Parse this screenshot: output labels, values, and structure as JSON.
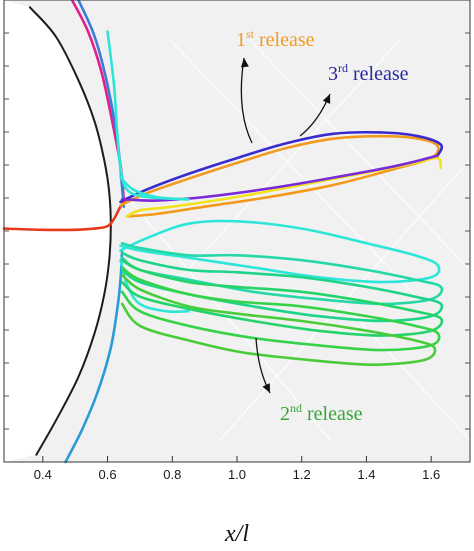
{
  "chart_data": {
    "type": "line",
    "xlabel": "x/l",
    "xlim": [
      0.28,
      1.72
    ],
    "x_ticks": [
      0.4,
      0.6,
      0.8,
      1.0,
      1.2,
      1.4,
      1.6
    ],
    "x_tick_labels": [
      "0.4",
      "0.6",
      "0.8",
      "1.0",
      "1.2",
      "1.4",
      "1.6"
    ],
    "ylim": [
      -0.95,
      0.95
    ],
    "grid": false,
    "background_color": "#f1f1f1",
    "annotations": [
      {
        "id": "first",
        "base": "1",
        "sup": "st",
        "rest": " release",
        "color": "#f39a1e"
      },
      {
        "id": "third",
        "base": "3",
        "sup": "rd",
        "rest": " release",
        "color": "#2a2a9e"
      },
      {
        "id": "second",
        "base": "2",
        "sup": "nd",
        "rest": " release",
        "color": "#3aa63a"
      }
    ],
    "series": [
      {
        "color": "#1c1c1c",
        "points": [
          [
            0.36,
            0.92
          ],
          [
            0.44,
            0.8
          ],
          [
            0.51,
            0.62
          ],
          [
            0.56,
            0.45
          ],
          [
            0.59,
            0.29
          ],
          [
            0.605,
            0.16
          ],
          [
            0.61,
            0.02
          ],
          [
            0.605,
            -0.12
          ],
          [
            0.59,
            -0.26
          ],
          [
            0.56,
            -0.42
          ],
          [
            0.51,
            -0.6
          ],
          [
            0.44,
            -0.78
          ],
          [
            0.38,
            -0.92
          ]
        ]
      },
      {
        "color": "#e0208c",
        "points": [
          [
            0.49,
            0.95
          ],
          [
            0.54,
            0.82
          ],
          [
            0.58,
            0.66
          ],
          [
            0.61,
            0.48
          ],
          [
            0.64,
            0.27
          ],
          [
            0.65,
            0.13
          ]
        ]
      },
      {
        "color": "#3a7cd8",
        "points": [
          [
            0.51,
            0.95
          ],
          [
            0.56,
            0.8
          ],
          [
            0.6,
            0.6
          ],
          [
            0.63,
            0.38
          ],
          [
            0.645,
            0.18
          ],
          [
            0.65,
            0.1
          ]
        ]
      },
      {
        "color": "#2a9ad8",
        "points": [
          [
            0.645,
            -0.08
          ],
          [
            0.64,
            -0.2
          ],
          [
            0.63,
            -0.32
          ],
          [
            0.61,
            -0.48
          ],
          [
            0.57,
            -0.66
          ],
          [
            0.52,
            -0.82
          ],
          [
            0.47,
            -0.95
          ]
        ]
      },
      {
        "color": "#e8391c",
        "points": [
          [
            0.28,
            0.01
          ],
          [
            0.4,
            0.005
          ],
          [
            0.5,
            0.005
          ],
          [
            0.56,
            0.01
          ],
          [
            0.6,
            0.02
          ],
          [
            0.62,
            0.05
          ],
          [
            0.64,
            0.1
          ],
          [
            0.66,
            0.135
          ]
        ]
      },
      {
        "color": "#f39a1e",
        "points": [
          [
            0.64,
            0.105
          ],
          [
            0.72,
            0.155
          ],
          [
            0.85,
            0.215
          ],
          [
            1.0,
            0.28
          ],
          [
            1.15,
            0.34
          ],
          [
            1.3,
            0.38
          ],
          [
            1.45,
            0.39
          ],
          [
            1.56,
            0.38
          ],
          [
            1.62,
            0.35
          ],
          [
            1.6,
            0.3
          ],
          [
            1.5,
            0.26
          ],
          [
            1.3,
            0.19
          ],
          [
            1.1,
            0.14
          ],
          [
            0.9,
            0.1
          ],
          [
            0.75,
            0.07
          ],
          [
            0.66,
            0.06
          ]
        ]
      },
      {
        "color": "#f2e21e",
        "points": [
          [
            0.66,
            0.06
          ],
          [
            0.7,
            0.085
          ],
          [
            0.8,
            0.1
          ],
          [
            1.0,
            0.14
          ],
          [
            1.2,
            0.19
          ],
          [
            1.4,
            0.24
          ],
          [
            1.55,
            0.28
          ],
          [
            1.62,
            0.3
          ],
          [
            1.63,
            0.26
          ]
        ]
      },
      {
        "color": "#3a2ccc",
        "points": [
          [
            0.64,
            0.12
          ],
          [
            0.72,
            0.17
          ],
          [
            0.85,
            0.235
          ],
          [
            1.0,
            0.3
          ],
          [
            1.15,
            0.36
          ],
          [
            1.3,
            0.4
          ],
          [
            1.45,
            0.405
          ],
          [
            1.56,
            0.39
          ],
          [
            1.63,
            0.355
          ],
          [
            1.62,
            0.31
          ]
        ]
      },
      {
        "color": "#7a2ad8",
        "points": [
          [
            1.62,
            0.31
          ],
          [
            1.5,
            0.27
          ],
          [
            1.3,
            0.22
          ],
          [
            1.1,
            0.175
          ],
          [
            0.9,
            0.14
          ],
          [
            0.75,
            0.125
          ],
          [
            0.66,
            0.13
          ],
          [
            0.645,
            0.13
          ]
        ]
      },
      {
        "color": "#2ee6d8",
        "points": [
          [
            0.6,
            0.82
          ],
          [
            0.62,
            0.6
          ],
          [
            0.63,
            0.4
          ],
          [
            0.64,
            0.26
          ],
          [
            0.66,
            0.17
          ],
          [
            0.72,
            0.14
          ],
          [
            0.85,
            0.13
          ]
        ]
      },
      {
        "color": "#2ee6d8",
        "points": [
          [
            0.85,
            0.13
          ],
          [
            0.75,
            0.14
          ],
          [
            0.68,
            0.17
          ],
          [
            0.64,
            0.22
          ]
        ]
      },
      {
        "color": "#2ee6d8",
        "points": [
          [
            0.64,
            -0.12
          ],
          [
            0.66,
            -0.22
          ],
          [
            0.7,
            -0.3
          ],
          [
            0.78,
            -0.33
          ],
          [
            0.85,
            -0.33
          ]
        ]
      },
      {
        "color": "#2ee6d8",
        "points": [
          [
            0.64,
            -0.08
          ],
          [
            0.72,
            -0.03
          ],
          [
            0.85,
            0.03
          ],
          [
            1.0,
            0.04
          ],
          [
            1.2,
            0.01
          ],
          [
            1.4,
            -0.05
          ],
          [
            1.55,
            -0.1
          ],
          [
            1.62,
            -0.14
          ],
          [
            1.6,
            -0.19
          ],
          [
            1.45,
            -0.21
          ],
          [
            1.25,
            -0.19
          ],
          [
            1.05,
            -0.15
          ],
          [
            0.85,
            -0.11
          ],
          [
            0.7,
            -0.08
          ],
          [
            0.64,
            -0.06
          ]
        ]
      },
      {
        "color": "#26d8a6",
        "points": [
          [
            0.645,
            -0.05
          ],
          [
            0.7,
            -0.07
          ],
          [
            0.85,
            -0.1
          ],
          [
            1.0,
            -0.1
          ],
          [
            1.2,
            -0.12
          ],
          [
            1.4,
            -0.16
          ],
          [
            1.55,
            -0.2
          ],
          [
            1.63,
            -0.23
          ],
          [
            1.6,
            -0.28
          ],
          [
            1.45,
            -0.3
          ],
          [
            1.25,
            -0.28
          ],
          [
            1.05,
            -0.25
          ],
          [
            0.85,
            -0.2
          ],
          [
            0.7,
            -0.16
          ],
          [
            0.645,
            -0.11
          ]
        ]
      },
      {
        "color": "#1ed48a",
        "points": [
          [
            0.645,
            -0.09
          ],
          [
            0.7,
            -0.12
          ],
          [
            0.85,
            -0.16
          ],
          [
            1.0,
            -0.17
          ],
          [
            1.2,
            -0.19
          ],
          [
            1.4,
            -0.23
          ],
          [
            1.55,
            -0.27
          ],
          [
            1.63,
            -0.3
          ],
          [
            1.6,
            -0.35
          ],
          [
            1.45,
            -0.37
          ],
          [
            1.25,
            -0.35
          ],
          [
            1.05,
            -0.31
          ],
          [
            0.85,
            -0.26
          ],
          [
            0.7,
            -0.21
          ],
          [
            0.645,
            -0.16
          ]
        ]
      },
      {
        "color": "#24d46a",
        "points": [
          [
            0.645,
            -0.12
          ],
          [
            0.7,
            -0.16
          ],
          [
            0.85,
            -0.21
          ],
          [
            1.0,
            -0.23
          ],
          [
            1.2,
            -0.25
          ],
          [
            1.4,
            -0.29
          ],
          [
            1.55,
            -0.33
          ],
          [
            1.63,
            -0.36
          ],
          [
            1.6,
            -0.41
          ],
          [
            1.45,
            -0.43
          ],
          [
            1.25,
            -0.41
          ],
          [
            1.05,
            -0.37
          ],
          [
            0.85,
            -0.32
          ],
          [
            0.7,
            -0.27
          ],
          [
            0.645,
            -0.21
          ]
        ]
      },
      {
        "color": "#36d24a",
        "points": [
          [
            0.645,
            -0.15
          ],
          [
            0.7,
            -0.2
          ],
          [
            0.85,
            -0.26
          ],
          [
            1.0,
            -0.29
          ],
          [
            1.2,
            -0.31
          ],
          [
            1.4,
            -0.35
          ],
          [
            1.55,
            -0.39
          ],
          [
            1.62,
            -0.42
          ],
          [
            1.6,
            -0.47
          ],
          [
            1.45,
            -0.49
          ],
          [
            1.25,
            -0.47
          ],
          [
            1.05,
            -0.44
          ],
          [
            0.85,
            -0.39
          ],
          [
            0.7,
            -0.33
          ],
          [
            0.645,
            -0.25
          ]
        ]
      },
      {
        "color": "#4acc3a",
        "points": [
          [
            0.645,
            -0.18
          ],
          [
            0.7,
            -0.24
          ],
          [
            0.85,
            -0.31
          ],
          [
            1.0,
            -0.34
          ],
          [
            1.2,
            -0.37
          ],
          [
            1.4,
            -0.41
          ],
          [
            1.55,
            -0.45
          ],
          [
            1.61,
            -0.48
          ],
          [
            1.58,
            -0.53
          ],
          [
            1.42,
            -0.55
          ],
          [
            1.22,
            -0.53
          ],
          [
            1.02,
            -0.5
          ],
          [
            0.85,
            -0.45
          ],
          [
            0.7,
            -0.39
          ],
          [
            0.645,
            -0.3
          ]
        ]
      }
    ]
  }
}
